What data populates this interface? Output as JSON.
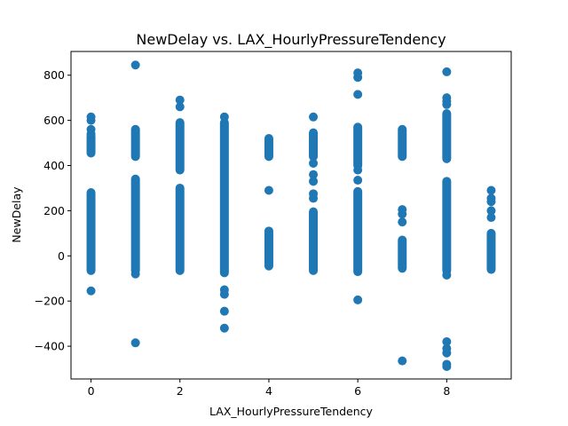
{
  "chart_data": {
    "type": "scatter",
    "title": "NewDelay vs. LAX_HourlyPressureTendency",
    "xlabel": "LAX_HourlyPressureTendency",
    "ylabel": "NewDelay",
    "xlim": [
      -0.45,
      9.45
    ],
    "ylim": [
      -545,
      905
    ],
    "xticks": [
      0,
      2,
      4,
      6,
      8
    ],
    "xtick_labels": [
      "0",
      "2",
      "4",
      "6",
      "8"
    ],
    "yticks": [
      -400,
      -200,
      0,
      200,
      400,
      600,
      800
    ],
    "ytick_labels": [
      "−400",
      "−200",
      "0",
      "200",
      "400",
      "600",
      "800"
    ],
    "grid": false,
    "marker_color": "#1f77b4",
    "columns": [
      {
        "x": 0,
        "dense": [
          [
            -65,
            280
          ],
          [
            455,
            530
          ]
        ],
        "points": [
          -155,
          540,
          560,
          600,
          615
        ]
      },
      {
        "x": 1,
        "dense": [
          [
            -65,
            340
          ],
          [
            440,
            560
          ]
        ],
        "points": [
          -385,
          -80,
          845
        ]
      },
      {
        "x": 2,
        "dense": [
          [
            -65,
            300
          ],
          [
            380,
            590
          ]
        ],
        "points": [
          660,
          690
        ]
      },
      {
        "x": 3,
        "dense": [
          [
            -75,
            590
          ]
        ],
        "points": [
          -150,
          -170,
          -245,
          -320,
          615
        ]
      },
      {
        "x": 4,
        "dense": [
          [
            -45,
            110
          ],
          [
            440,
            520
          ]
        ],
        "points": [
          290
        ]
      },
      {
        "x": 5,
        "dense": [
          [
            -65,
            195
          ],
          [
            440,
            545
          ]
        ],
        "points": [
          255,
          275,
          330,
          360,
          410,
          615
        ]
      },
      {
        "x": 6,
        "dense": [
          [
            -70,
            285
          ],
          [
            400,
            570
          ]
        ],
        "points": [
          -195,
          335,
          380,
          715,
          790,
          810
        ]
      },
      {
        "x": 7,
        "dense": [
          [
            -55,
            70
          ],
          [
            440,
            560
          ]
        ],
        "points": [
          150,
          185,
          205,
          -465
        ]
      },
      {
        "x": 8,
        "dense": [
          [
            -65,
            330
          ],
          [
            430,
            630
          ]
        ],
        "points": [
          -85,
          -380,
          -410,
          -430,
          -480,
          -490,
          670,
          685,
          700,
          815
        ]
      },
      {
        "x": 9,
        "dense": [
          [
            -60,
            100
          ]
        ],
        "points": [
          170,
          200,
          240,
          255,
          290
        ]
      }
    ]
  }
}
